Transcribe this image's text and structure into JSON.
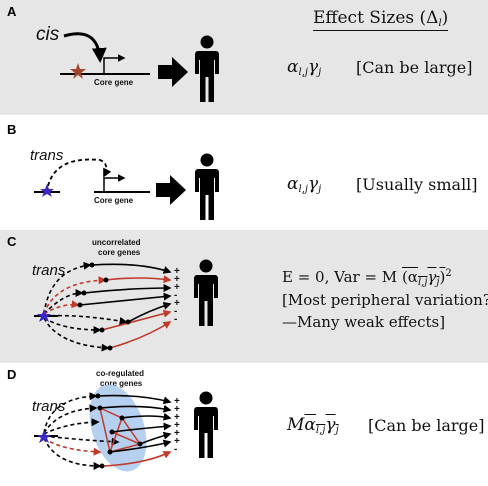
{
  "header": {
    "title": "Effect Sizes (Δ",
    "title_sub": "l",
    "title_close": ")"
  },
  "panels": [
    {
      "label": "A",
      "regulator": "cis",
      "gene_label": "Core gene",
      "formula": {
        "alpha": "α",
        "alpha_sub": "l,j",
        "gamma": "γ",
        "gamma_sub": "j"
      },
      "note": "[Can be large]"
    },
    {
      "label": "B",
      "regulator": "trans",
      "gene_label": "Core gene",
      "formula": {
        "alpha": "α",
        "alpha_sub": "l,j",
        "gamma": "γ",
        "gamma_sub": "j"
      },
      "note": "[Usually small]"
    },
    {
      "label": "C",
      "regulator": "trans",
      "group_label_1": "uncorrelated",
      "group_label_2": "core genes",
      "formula_line1_prefix": "E = 0, Var = M",
      "formula_line1_term": "(α",
      "formula_line1_sub1": "l,j",
      "formula_line1_mid": "γ",
      "formula_line1_sub2": "j",
      "formula_line1_close": ")",
      "formula_line1_sup": "2",
      "note_line2": "[Most peripheral variation?",
      "note_line3": "—Many weak effects]",
      "signs": [
        "+",
        "+",
        "+",
        "-",
        "+",
        "-",
        "-"
      ]
    },
    {
      "label": "D",
      "regulator": "trans",
      "group_label_1": "co-regulated",
      "group_label_2": "core genes",
      "formula": {
        "m": "M",
        "alpha": "α",
        "alpha_sub": "l,j",
        "gamma": "γ",
        "gamma_sub": "j"
      },
      "note": "[Can be large]",
      "signs": [
        "+",
        "+",
        "+",
        "+",
        "+",
        "+",
        "-"
      ]
    }
  ],
  "colors": {
    "panel_gray": "#e6e6e6",
    "star_red": "#a3432e",
    "star_blue": "#3b28c4",
    "edge_red": "#c0392b",
    "cloud_blue": "#a9c8ec"
  }
}
